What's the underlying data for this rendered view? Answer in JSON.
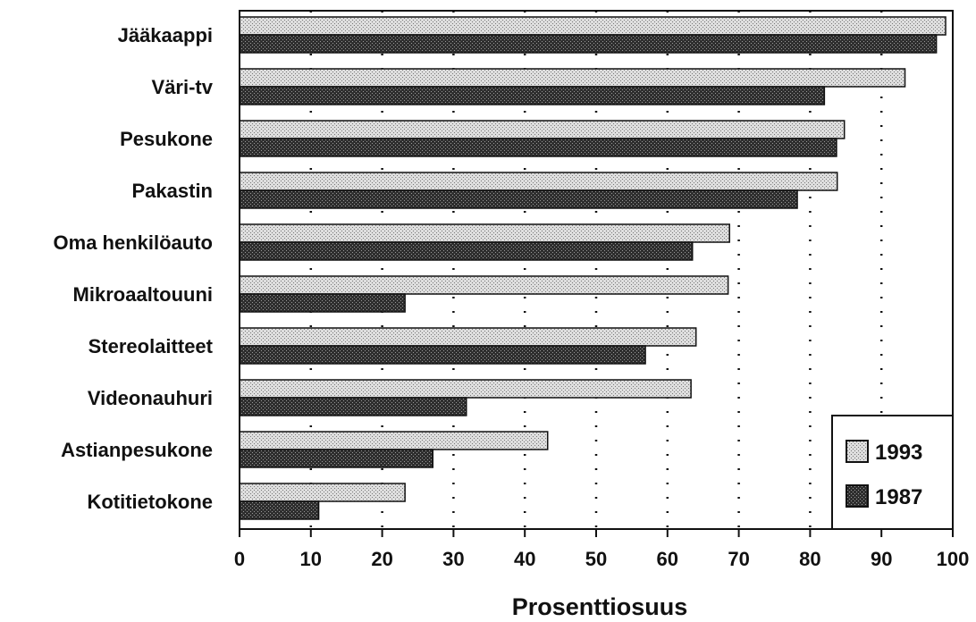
{
  "chart_data": {
    "type": "bar",
    "orientation": "horizontal",
    "categories": [
      "Jääkaappi",
      "Väri-tv",
      "Pesukone",
      "Pakastin",
      "Oma henkilöauto",
      "Mikroaaltouuni",
      "Stereolaitteet",
      "Videonauhuri",
      "Astianpesukone",
      "Kotitietokone"
    ],
    "series": [
      {
        "name": "1993",
        "values": [
          99,
          93.3,
          84.8,
          83.8,
          68.7,
          68.5,
          64,
          63.3,
          43.2,
          23.2
        ],
        "color": "#d2d2d2"
      },
      {
        "name": "1987",
        "values": [
          97.7,
          82,
          83.7,
          78.2,
          63.5,
          23.2,
          56.9,
          31.8,
          27.1,
          11.1
        ],
        "color": "#3a3a3a"
      }
    ],
    "xlabel": "Prosenttiosuus",
    "ylabel": "",
    "xlim": [
      0,
      100
    ],
    "xticks": [
      0,
      10,
      20,
      30,
      40,
      50,
      60,
      70,
      80,
      90,
      100
    ],
    "grid": "vertical dotted",
    "legend_position": "bottom-right"
  }
}
